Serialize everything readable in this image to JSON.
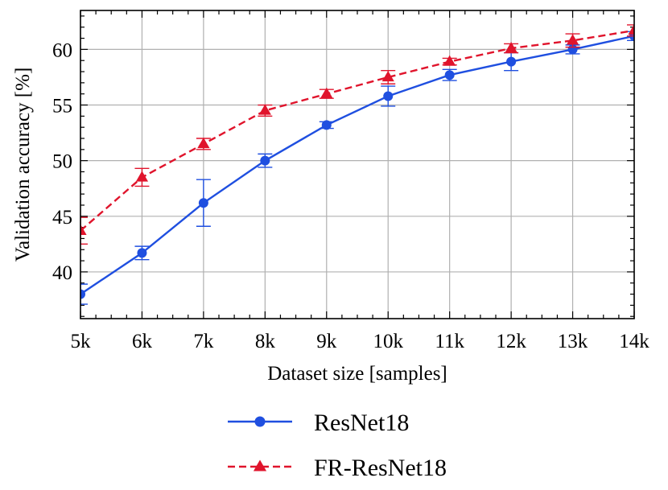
{
  "chart_data": {
    "type": "line",
    "xlabel": "Dataset size [samples]",
    "ylabel": "Validation accuracy [%]",
    "x": [
      5,
      6,
      7,
      8,
      9,
      10,
      11,
      12,
      13,
      14
    ],
    "x_tick_labels": [
      "5k",
      "6k",
      "7k",
      "8k",
      "9k",
      "10k",
      "11k",
      "12k",
      "13k",
      "14k"
    ],
    "y_ticks": [
      40,
      45,
      50,
      55,
      60
    ],
    "y_tick_labels": [
      "40",
      "45",
      "50",
      "55",
      "60"
    ],
    "xlim": [
      5,
      14
    ],
    "ylim": [
      35.8,
      63.5
    ],
    "grid": true,
    "legend_position": "bottom-center",
    "series": [
      {
        "name": "ResNet18",
        "color": "#1f4fe0",
        "marker": "circle",
        "linestyle": "solid",
        "values": [
          38.0,
          41.7,
          46.2,
          50.0,
          53.2,
          55.8,
          57.7,
          58.9,
          60.0,
          61.2
        ],
        "errors": [
          0.9,
          0.6,
          2.1,
          0.6,
          0.3,
          0.9,
          0.5,
          0.8,
          0.4,
          0.4
        ]
      },
      {
        "name": "FR-ResNet18",
        "color": "#e0142c",
        "marker": "triangle",
        "linestyle": "dashed",
        "values": [
          43.7,
          48.5,
          51.5,
          54.5,
          56.0,
          57.5,
          58.9,
          60.1,
          60.8,
          61.7
        ],
        "errors": [
          1.2,
          0.8,
          0.5,
          0.5,
          0.4,
          0.6,
          0.3,
          0.4,
          0.6,
          0.5
        ]
      }
    ]
  }
}
